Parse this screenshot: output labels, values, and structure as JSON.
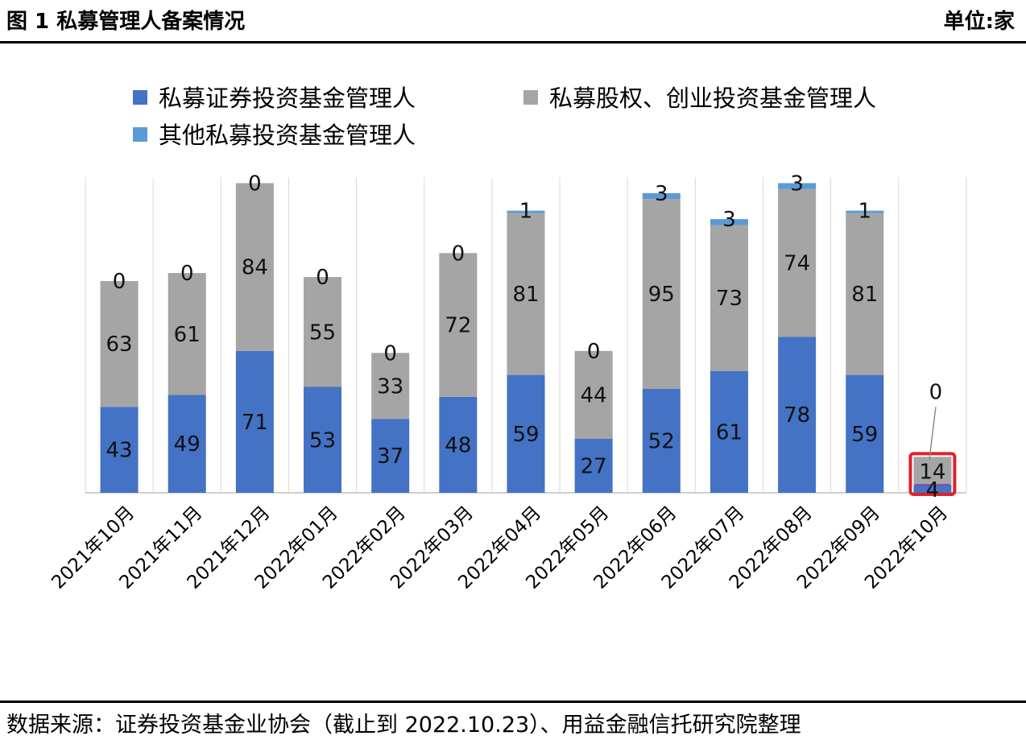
{
  "header": {
    "title": "图 1 私募管理人备案情况",
    "unit": "单位:家"
  },
  "footer": {
    "source": "数据来源：证券投资基金业协会（截止到 2022.10.23）、用益金融信托研究院整理"
  },
  "colors": {
    "securities": "#4472c4",
    "equity": "#a5a5a5",
    "other": "#5b9bd5",
    "highlight": "#e0202a"
  },
  "chart_data": {
    "type": "bar",
    "stacked": true,
    "title": "图 1 私募管理人备案情况",
    "unit": "单位:家",
    "categories": [
      "2021年10月",
      "2021年11月",
      "2021年12月",
      "2022年01月",
      "2022年02月",
      "2022年03月",
      "2022年04月",
      "2022年05月",
      "2022年06月",
      "2022年07月",
      "2022年08月",
      "2022年09月",
      "2022年10月"
    ],
    "series": [
      {
        "name": "私募证券投资基金管理人",
        "values": [
          43,
          49,
          71,
          53,
          37,
          48,
          59,
          27,
          52,
          61,
          78,
          59,
          4
        ]
      },
      {
        "name": "私募股权、创业投资基金管理人",
        "values": [
          63,
          61,
          84,
          55,
          33,
          72,
          81,
          44,
          95,
          73,
          74,
          81,
          14
        ]
      },
      {
        "name": "其他私募投资基金管理人",
        "values": [
          0,
          0,
          0,
          0,
          0,
          0,
          1,
          0,
          3,
          3,
          3,
          1,
          0
        ]
      }
    ],
    "legend_position": "top",
    "grid": "vertical",
    "highlighted_category": "2022年10月",
    "ylim": [
      0,
      158
    ]
  }
}
